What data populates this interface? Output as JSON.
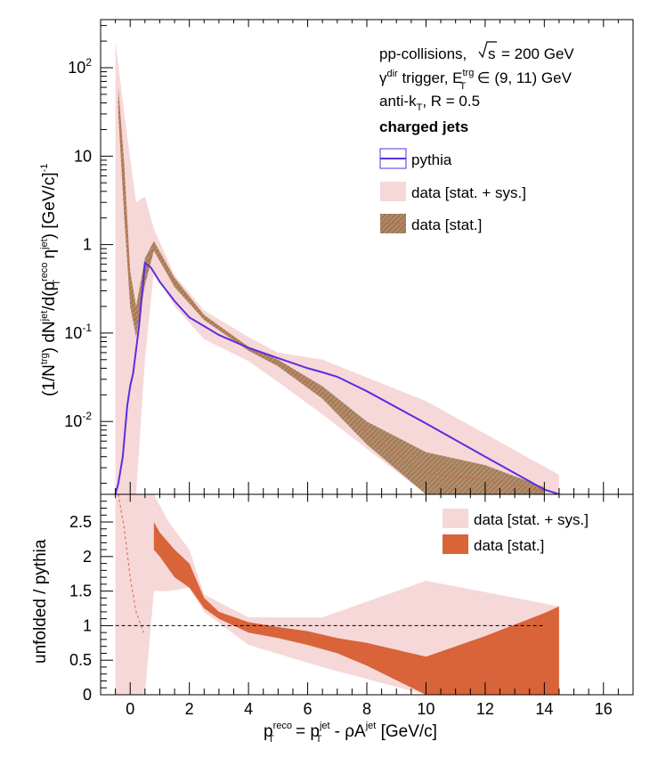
{
  "colors": {
    "pythia": "#5b2de0",
    "data_sys": "#f6d8d8",
    "data_stat_top": "#9c7d5e",
    "data_stat_ratio": "#d9643a",
    "ref_line": "#000000"
  },
  "chart_data": [
    {
      "type": "line",
      "panel": "spectrum",
      "y_scale": "log",
      "xlim": [
        -1,
        17
      ],
      "ylim": [
        0.0015,
        350
      ],
      "y_ticks": [
        0.01,
        0.1,
        1,
        10,
        100
      ],
      "y_tick_labels": [
        {
          "base": "10",
          "exp": "-2"
        },
        {
          "base": "10",
          "exp": "-1"
        },
        {
          "base": "1",
          "exp": ""
        },
        {
          "base": "10",
          "exp": ""
        },
        {
          "base": "10",
          "exp": "2"
        }
      ],
      "ylabel": "(1/Ntrg) dNjet/d(pTreco ηjet) [GeV/c]-1",
      "ylabel_parts": {
        "p1": "(1/N",
        "sup1": "trg",
        "p2": ") dN",
        "sup2": "jet",
        "p3": "/d(p",
        "sub3": "T",
        "sup3": "reco",
        "p4": " η",
        "sup4": "jet",
        "p5": ") [GeV/c]",
        "sup5": "-1"
      },
      "annotations": {
        "collision": "pp-collisions,",
        "sqrt_s": "s",
        "energy": "= 200 GeV",
        "trigger_a": "γ",
        "trigger_dir": "dir",
        "trigger_b": " trigger, E",
        "trigger_trg": "trg",
        "trigger_T": "T",
        "trigger_c": " ∈ (9, 11) GeV",
        "algo_a": "anti-k",
        "algo_T": "T",
        "algo_b": ", R = 0.5",
        "jets": "charged jets"
      },
      "legend": [
        "pythia",
        "data [stat. + sys.]",
        "data [stat.]"
      ],
      "legend_position": "top-right",
      "series": [
        {
          "name": "pythia",
          "x": [
            -0.5,
            -0.4,
            -0.25,
            -0.1,
            0.0,
            0.1,
            0.3,
            0.5,
            0.7,
            1.0,
            1.5,
            2.0,
            3.0,
            4.0,
            5.0,
            6.0,
            6.5,
            7.0,
            8.0,
            10.0,
            12.0,
            14.0,
            14.5
          ],
          "y": [
            0.0015,
            0.002,
            0.004,
            0.015,
            0.025,
            0.035,
            0.12,
            0.62,
            0.55,
            0.38,
            0.23,
            0.15,
            0.095,
            0.068,
            0.052,
            0.04,
            0.036,
            0.032,
            0.022,
            0.0095,
            0.004,
            0.0017,
            0.0015
          ]
        },
        {
          "name": "data [stat. + sys.]",
          "x": [
            -0.5,
            -0.2,
            0.2,
            0.5,
            0.8,
            1.5,
            2.5,
            4.0,
            5.0,
            6.5,
            10.0,
            14.5
          ],
          "y_low": [
            0.0015,
            0.0015,
            0.0015,
            0.05,
            0.5,
            0.2,
            0.085,
            0.048,
            0.028,
            0.012,
            0.0015,
            0.0015
          ],
          "y_high": [
            200,
            30,
            3,
            3.5,
            1.5,
            0.45,
            0.18,
            0.09,
            0.06,
            0.05,
            0.017,
            0.0025
          ]
        },
        {
          "name": "data [stat.]",
          "x": [
            -0.4,
            -0.2,
            0.0,
            0.2,
            0.5,
            0.8,
            1.5,
            2.5,
            4.0,
            5.0,
            6.5,
            8.0,
            10.0,
            12.0,
            14.0
          ],
          "y_low": [
            30,
            2.0,
            0.2,
            0.09,
            0.35,
            0.85,
            0.33,
            0.14,
            0.063,
            0.042,
            0.018,
            0.0055,
            0.0015,
            0.0015,
            0.0015
          ],
          "y_high": [
            60,
            8.0,
            0.5,
            0.2,
            0.7,
            1.1,
            0.42,
            0.16,
            0.07,
            0.05,
            0.025,
            0.01,
            0.0045,
            0.0032,
            0.0018
          ]
        }
      ]
    },
    {
      "type": "area",
      "panel": "ratio",
      "xlim": [
        -1,
        17
      ],
      "ylim": [
        0,
        2.9
      ],
      "x_ticks": [
        0,
        2,
        4,
        6,
        8,
        10,
        12,
        14,
        16
      ],
      "y_ticks": [
        0,
        0.5,
        1,
        1.5,
        2,
        2.5
      ],
      "xlabel": "pTreco = pTjet - ρAjet [GeV/c]",
      "xlabel_parts": {
        "p": "p",
        "sub1": "T",
        "sup1": "reco",
        "eq": " = p",
        "sub2": "T",
        "sup2": "jet",
        "mid": " - ρA",
        "sup3": "jet",
        "end": " [GeV/c]"
      },
      "ylabel": "unfolded / pythia",
      "legend": [
        "data [stat. + sys.]",
        "data [stat.]"
      ],
      "legend_position": "top-right",
      "reference_line": 1,
      "series": [
        {
          "name": "data [stat. + sys.]",
          "x": [
            -0.5,
            0.0,
            0.5,
            0.8,
            1.3,
            2.0,
            2.5,
            4.0,
            6.5,
            10.0,
            14.5
          ],
          "y_low": [
            0,
            0,
            0,
            1.5,
            1.5,
            1.55,
            1.2,
            0.72,
            0.4,
            0,
            0
          ],
          "y_high": [
            2.9,
            2.9,
            2.9,
            2.9,
            2.5,
            2.1,
            1.45,
            1.12,
            1.12,
            1.65,
            1.28
          ]
        },
        {
          "name": "data [stat.]",
          "x": [
            0.8,
            1.0,
            1.5,
            2.0,
            2.5,
            3.0,
            4.0,
            5.0,
            6.0,
            7.0,
            8.0,
            10.0,
            12.0,
            14.0,
            14.5
          ],
          "y_low": [
            2.1,
            2.0,
            1.7,
            1.55,
            1.25,
            1.1,
            0.9,
            0.82,
            0.72,
            0.6,
            0.42,
            0.0,
            0.0,
            0.0,
            0.0
          ],
          "y_high": [
            2.5,
            2.35,
            2.1,
            1.9,
            1.4,
            1.2,
            1.05,
            0.98,
            0.92,
            0.82,
            0.75,
            0.55,
            0.85,
            1.18,
            1.28
          ]
        },
        {
          "name": "data [stat.] central",
          "x": [
            -0.4,
            -0.2,
            0.0,
            0.2,
            0.45
          ],
          "y": [
            2.9,
            2.4,
            1.7,
            1.2,
            0.9
          ]
        }
      ]
    }
  ]
}
